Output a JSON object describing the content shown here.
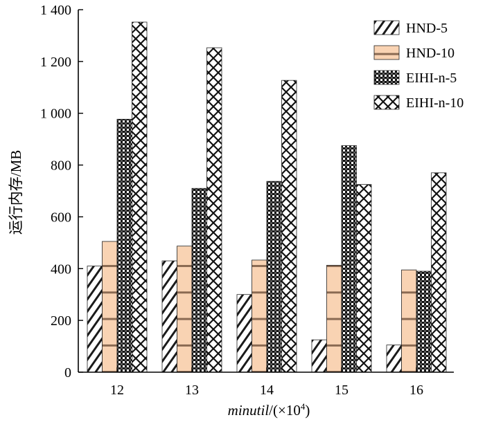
{
  "chart_data": {
    "type": "bar",
    "categories": [
      "12",
      "13",
      "14",
      "15",
      "16"
    ],
    "series": [
      {
        "name": "HND-5",
        "pattern": "diagonal-hatch",
        "values": [
          410,
          430,
          300,
          125,
          105
        ]
      },
      {
        "name": "HND-10",
        "pattern": "peach-horizontal-bands",
        "values": [
          505,
          487,
          433,
          413,
          395
        ]
      },
      {
        "name": "EIHI-n-5",
        "pattern": "dense-checker",
        "values": [
          977,
          710,
          737,
          875,
          390
        ]
      },
      {
        "name": "EIHI-n-10",
        "pattern": "crosshatch-diamond",
        "values": [
          1352,
          1253,
          1127,
          725,
          770
        ]
      }
    ],
    "ylim": [
      0,
      1400
    ],
    "yticks": [
      0,
      200,
      400,
      600,
      800,
      1000,
      1200,
      1400
    ],
    "ytick_labels": [
      "0",
      "200",
      "400",
      "600",
      "800",
      "1 000",
      "1 200",
      "1 400"
    ],
    "ylabel": "运行内存/MB",
    "xlabel_italic": "minutil",
    "xlabel_rest": "/(×10",
    "xlabel_sup": "4",
    "xlabel_close": ")",
    "legend_position": "top-right",
    "colors": {
      "peach": "#f9d3b3",
      "band": "#8a6a52",
      "ink": "#1a1a1a"
    }
  }
}
